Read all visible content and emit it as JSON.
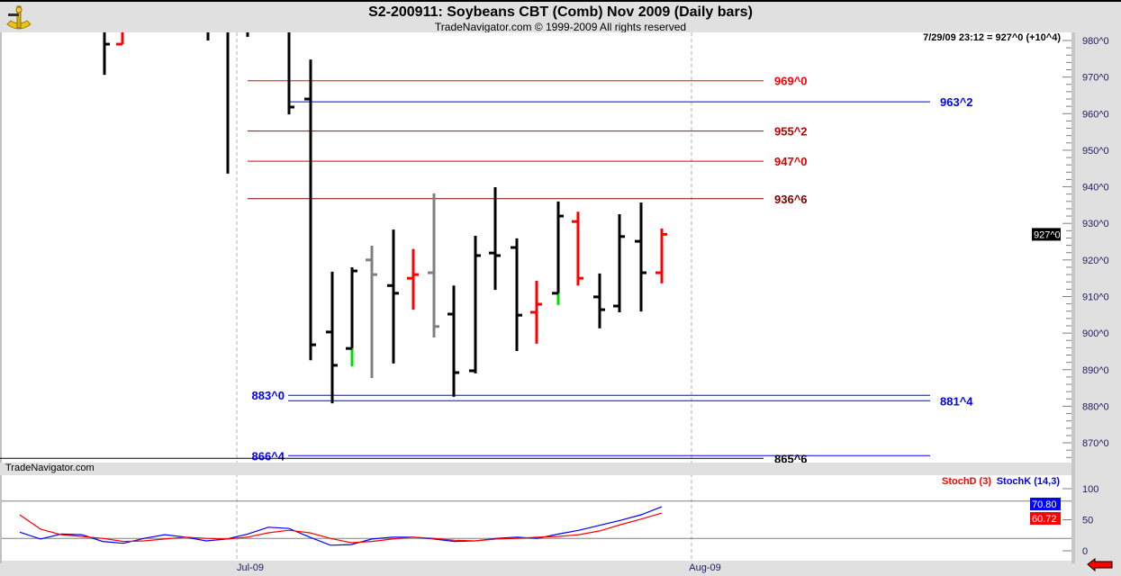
{
  "header": {
    "title": "S2-200911:  Soybeans CBT (Comb) Nov 2009  (Daily bars)",
    "subtitle": "TradeNavigator.com © 1999-2009 All rights reserved",
    "logo": "sextant-logo"
  },
  "quote": "7/29/09 23:12 = 927^0 (+10^4)",
  "watermark": "TradeNavigator.com",
  "colors": {
    "up": "#000000",
    "down": "#ff0000",
    "neutral": "#808080",
    "accent": "#00dd00",
    "stochK": "#0000ff",
    "stochD": "#ff0000"
  },
  "chart_data": [
    {
      "type": "bar",
      "subtype": "ohlc",
      "ylim": [
        865,
        982
      ],
      "y_ticks": [
        "980^0",
        "970^0",
        "960^0",
        "950^0",
        "940^0",
        "930^0",
        "920^0",
        "910^0",
        "900^0",
        "890^0",
        "880^0",
        "870^0"
      ],
      "x_ticks": [
        "Jul-09",
        "Aug-09"
      ],
      "last_price_label": "927^0",
      "bars": [
        {
          "h": null,
          "l": 970.6,
          "o": null,
          "c": 979,
          "color": "black"
        },
        {
          "h": null,
          "l": 979,
          "o": 979,
          "c": null,
          "color": "red"
        },
        null,
        null,
        null,
        {
          "h": null,
          "l": 980,
          "o": null,
          "c": null,
          "color": "black"
        },
        {
          "h": null,
          "l": 943.6,
          "o": null,
          "c": null,
          "color": "black"
        },
        {
          "h": null,
          "l": 981,
          "o": null,
          "c": null,
          "color": "black"
        },
        null,
        {
          "h": null,
          "l": 959.8,
          "o": null,
          "c": 961.8,
          "color": "black"
        },
        {
          "h": 974.8,
          "l": 892.6,
          "o": 964,
          "c": 896.8,
          "color": "black"
        },
        {
          "h": 916.8,
          "l": 880.8,
          "o": 900.3,
          "c": 891.2,
          "color": "black"
        },
        {
          "h": 918,
          "l": 890.9,
          "o": 895.8,
          "c": 917,
          "color": "black",
          "tail": "green"
        },
        {
          "h": 923.9,
          "l": 887.7,
          "o": 920,
          "c": 916,
          "color": "gray"
        },
        {
          "h": 928.3,
          "l": 891.7,
          "o": 913,
          "c": 910.9,
          "color": "black"
        },
        {
          "h": 923,
          "l": 906.4,
          "o": 915,
          "c": 916,
          "color": "red"
        },
        {
          "h": 938.2,
          "l": 898.8,
          "o": 916.5,
          "c": 901.8,
          "color": "gray"
        },
        {
          "h": 913,
          "l": 882.6,
          "o": 905.2,
          "c": 889.2,
          "color": "black"
        },
        {
          "h": 926.6,
          "l": 889,
          "o": 889.7,
          "c": 921.2,
          "color": "black"
        },
        {
          "h": 939.9,
          "l": 911.8,
          "o": 921.9,
          "c": 921.2,
          "color": "black"
        },
        {
          "h": 925.9,
          "l": 895.1,
          "o": 923.4,
          "c": 904.9,
          "color": "black"
        },
        {
          "h": 914.3,
          "l": 897.1,
          "o": 905.7,
          "c": 907.9,
          "color": "red"
        },
        {
          "h": 936,
          "l": 907.7,
          "o": 910.9,
          "c": 932,
          "color": "black",
          "tail": "green"
        },
        {
          "h": 933.2,
          "l": 913,
          "o": 930.5,
          "c": 915,
          "color": "red"
        },
        {
          "h": 916.3,
          "l": 901.3,
          "o": 909.9,
          "c": 906.4,
          "color": "black"
        },
        {
          "h": 932.5,
          "l": 905.7,
          "o": 907.4,
          "c": 926.4,
          "color": "black"
        },
        {
          "h": 935.7,
          "l": 905.9,
          "o": 925.1,
          "c": 916.5,
          "color": "black"
        },
        {
          "h": 928.6,
          "l": 913.6,
          "o": 916.5,
          "c": 927,
          "color": "red"
        }
      ],
      "levels": [
        {
          "label": "969^0",
          "value": 969,
          "color": "#ff0000",
          "side": "right-near"
        },
        {
          "label": "963^2",
          "value": 963.25,
          "color": "#0000ff",
          "side": "right-far"
        },
        {
          "label": "955^2",
          "value": 955.25,
          "color": "#c00000",
          "side": "right-near"
        },
        {
          "label": "947^0",
          "value": 947,
          "color": "#e00000",
          "side": "right-near"
        },
        {
          "label": "936^6",
          "value": 936.75,
          "color": "#800000",
          "side": "right-near"
        },
        {
          "label": "883^0",
          "value": 883,
          "color": "#0000ff",
          "side": "left"
        },
        {
          "label": "881^4",
          "value": 881.5,
          "color": "#0000ff",
          "side": "right-far"
        },
        {
          "label": "866^4",
          "value": 866.5,
          "color": "#0000ff",
          "side": "left"
        },
        {
          "label": "865^6",
          "value": 865.75,
          "color": "#000000",
          "side": "right-near"
        }
      ]
    },
    {
      "type": "line",
      "ylim": [
        0,
        100
      ],
      "y_ticks": [
        "100",
        "50",
        "0"
      ],
      "reference_lines": [
        80,
        20
      ],
      "series": [
        {
          "name": "StochD (3)",
          "color": "#ff0000",
          "last_label": "60.72",
          "values": [
            58,
            35,
            26,
            23,
            20,
            15,
            16,
            19,
            22,
            20,
            19,
            22,
            29,
            33,
            29,
            20,
            13,
            15,
            19,
            22,
            20,
            17,
            16,
            19,
            20,
            22,
            23,
            26,
            32,
            42,
            51,
            60.72
          ]
        },
        {
          "name": "StochK (14,3)",
          "color": "#0000ff",
          "last_label": "70.80",
          "values": [
            30,
            19,
            27,
            26,
            15,
            12,
            20,
            26,
            22,
            16,
            19,
            27,
            38,
            36,
            22,
            9,
            10,
            19,
            22,
            22,
            19,
            15,
            16,
            20,
            22,
            20,
            27,
            33,
            41,
            49,
            58,
            70.8
          ]
        }
      ]
    }
  ]
}
